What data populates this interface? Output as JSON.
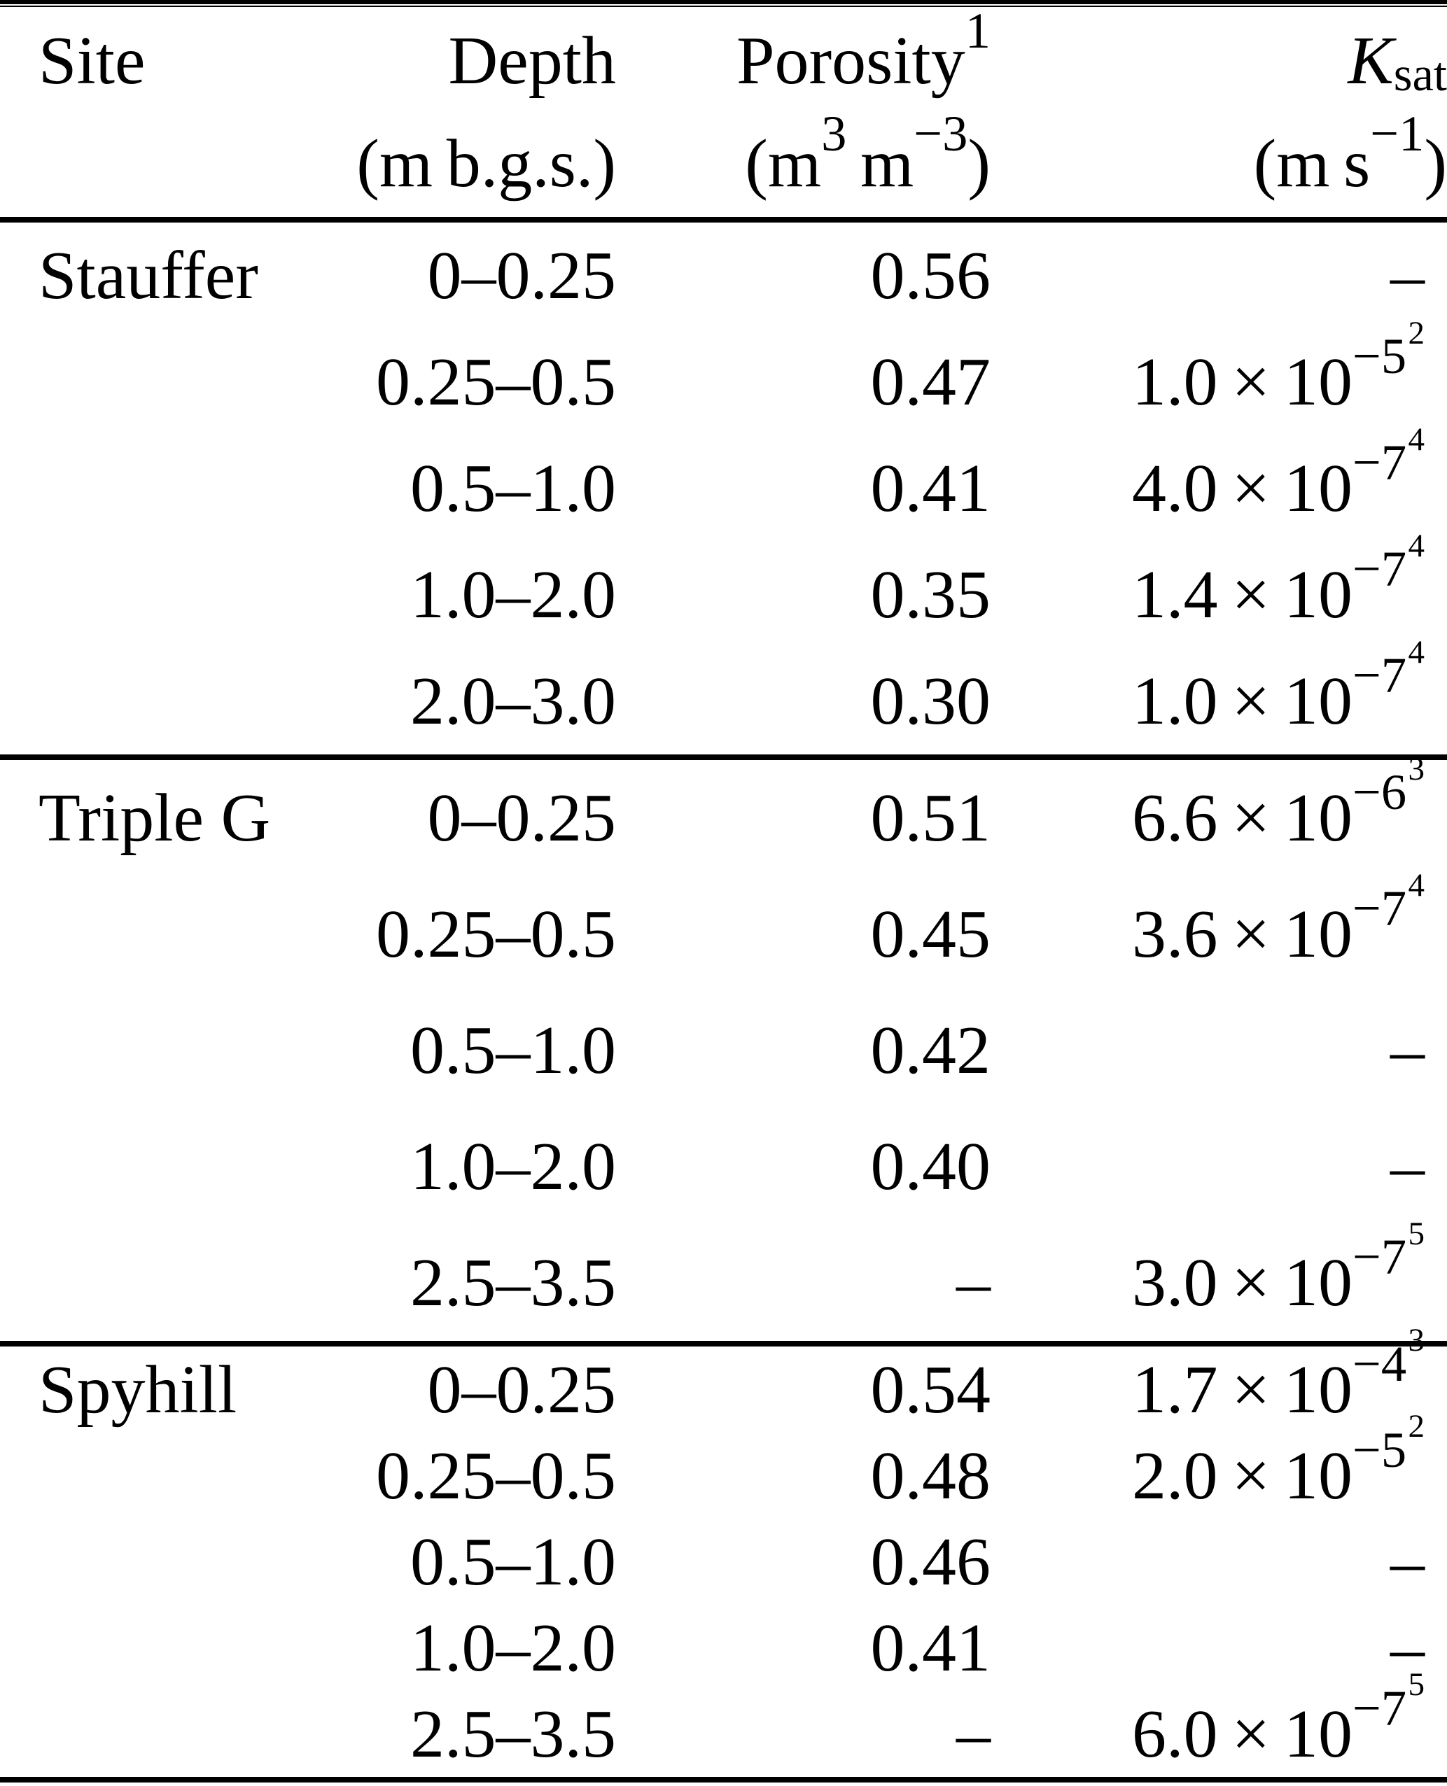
{
  "page": {
    "background_color": "#ffffff",
    "text_color": "#000000"
  },
  "table": {
    "dash": "–",
    "times10": " × 10",
    "header": {
      "site": "Site",
      "depth": {
        "label": "Depth",
        "unit": "(m b.g.s.)"
      },
      "porosity": {
        "label": "Porosity",
        "note": "1",
        "unit": {
          "open": "(m",
          "sup1": "3",
          "mid": " m",
          "sup2": "−3",
          "close": ")"
        }
      },
      "ksat": {
        "label_main": "K",
        "label_sub": "sat",
        "unit": {
          "open": "(m s",
          "sup": "−1",
          "close": ")"
        }
      }
    },
    "sections": [
      {
        "site": "Stauffer",
        "rows": [
          {
            "depth": "0–0.25",
            "porosity": "0.56",
            "ksat": null
          },
          {
            "depth": "0.25–0.5",
            "porosity": "0.47",
            "ksat": {
              "coef": "1.0",
              "exp": "−5",
              "note": "2"
            }
          },
          {
            "depth": "0.5–1.0",
            "porosity": "0.41",
            "ksat": {
              "coef": "4.0",
              "exp": "−7",
              "note": "4"
            }
          },
          {
            "depth": "1.0–2.0",
            "porosity": "0.35",
            "ksat": {
              "coef": "1.4",
              "exp": "−7",
              "note": "4"
            }
          },
          {
            "depth": "2.0–3.0",
            "porosity": "0.30",
            "ksat": {
              "coef": "1.0",
              "exp": "−7",
              "note": "4"
            }
          }
        ]
      },
      {
        "site": "Triple G",
        "rows": [
          {
            "depth": "0–0.25",
            "porosity": "0.51",
            "ksat": {
              "coef": "6.6",
              "exp": "−6",
              "note": "3"
            }
          },
          {
            "depth": "0.25–0.5",
            "porosity": "0.45",
            "ksat": {
              "coef": "3.6",
              "exp": "−7",
              "note": "4"
            }
          },
          {
            "depth": "0.5–1.0",
            "porosity": "0.42",
            "ksat": null
          },
          {
            "depth": "1.0–2.0",
            "porosity": "0.40",
            "ksat": null
          },
          {
            "depth": "2.5–3.5",
            "porosity": null,
            "ksat": {
              "coef": "3.0",
              "exp": "−7",
              "note": "5"
            }
          }
        ]
      },
      {
        "site": "Spyhill",
        "rows": [
          {
            "depth": "0–0.25",
            "porosity": "0.54",
            "ksat": {
              "coef": "1.7",
              "exp": "−4",
              "note": "3"
            }
          },
          {
            "depth": "0.25–0.5",
            "porosity": "0.48",
            "ksat": {
              "coef": "2.0",
              "exp": "−5",
              "note": "2"
            }
          },
          {
            "depth": "0.5–1.0",
            "porosity": "0.46",
            "ksat": null
          },
          {
            "depth": "1.0–2.0",
            "porosity": "0.41",
            "ksat": null
          },
          {
            "depth": "2.5–3.5",
            "porosity": null,
            "ksat": {
              "coef": "6.0",
              "exp": "−7",
              "note": "5"
            }
          }
        ]
      }
    ]
  }
}
